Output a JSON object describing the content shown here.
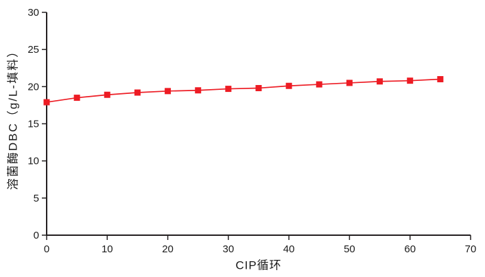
{
  "chart_data": {
    "type": "line",
    "x": [
      0,
      5,
      10,
      15,
      20,
      25,
      30,
      35,
      40,
      45,
      50,
      55,
      60,
      65
    ],
    "values": [
      17.9,
      18.5,
      18.9,
      19.2,
      19.4,
      19.5,
      19.7,
      19.8,
      20.1,
      20.3,
      20.5,
      20.7,
      20.8,
      21.0
    ],
    "title": "",
    "xlabel": "CIP循环",
    "ylabel": "溶菌酶DBC（g/L-填料）",
    "xlim": [
      0,
      70
    ],
    "ylim": [
      0,
      30
    ],
    "x_ticks": [
      0,
      10,
      20,
      30,
      40,
      50,
      60,
      70
    ],
    "y_ticks": [
      0,
      5,
      10,
      15,
      20,
      25,
      30
    ],
    "grid": false,
    "legend": false,
    "marker": "square",
    "line_color": "#ed1c24",
    "marker_color": "#ed1c24",
    "axis_color": "#231f20",
    "text_color": "#1a1a1a",
    "background": "#ffffff"
  }
}
